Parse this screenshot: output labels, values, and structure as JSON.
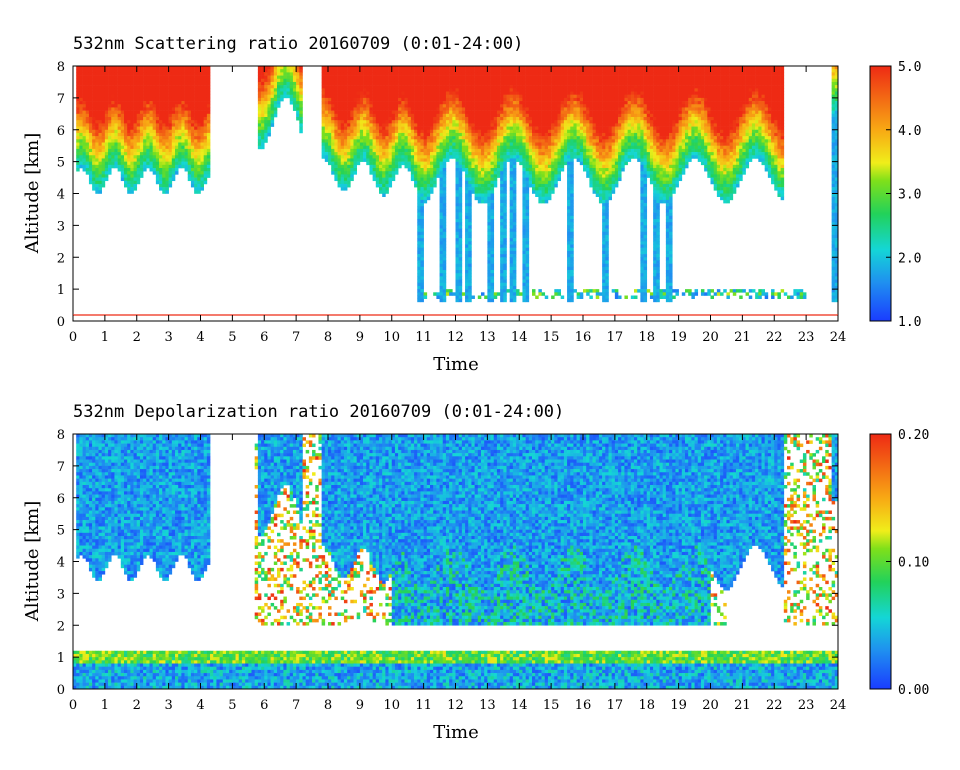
{
  "chart_data": [
    {
      "type": "heatmap",
      "title": "532nm Scattering ratio  20160709 (0:01-24:00)",
      "xlabel": "Time",
      "ylabel": "Altitude [km]",
      "xlim": [
        0,
        24
      ],
      "ylim": [
        0,
        8
      ],
      "x_ticks": [
        "0",
        "1",
        "2",
        "3",
        "4",
        "5",
        "6",
        "7",
        "8",
        "9",
        "10",
        "11",
        "12",
        "13",
        "14",
        "15",
        "16",
        "17",
        "18",
        "19",
        "20",
        "21",
        "22",
        "23",
        "24"
      ],
      "y_ticks": [
        "0",
        "1",
        "2",
        "3",
        "4",
        "5",
        "6",
        "7",
        "8"
      ],
      "colorbar": {
        "min": 1.0,
        "max": 5.0,
        "ticks": [
          "1.0",
          "2.0",
          "3.0",
          "4.0",
          "5.0"
        ]
      },
      "ground_line_km": 0.2
    },
    {
      "type": "heatmap",
      "title": "532nm Depolarization ratio  20160709 (0:01-24:00)",
      "xlabel": "Time",
      "ylabel": "Altitude [km]",
      "xlim": [
        0,
        24
      ],
      "ylim": [
        0,
        8
      ],
      "x_ticks": [
        "0",
        "1",
        "2",
        "3",
        "4",
        "5",
        "6",
        "7",
        "8",
        "9",
        "10",
        "11",
        "12",
        "13",
        "14",
        "15",
        "16",
        "17",
        "18",
        "19",
        "20",
        "21",
        "22",
        "23",
        "24"
      ],
      "y_ticks": [
        "0",
        "1",
        "2",
        "3",
        "4",
        "5",
        "6",
        "7",
        "8"
      ],
      "colorbar": {
        "min": 0.0,
        "max": 0.2,
        "ticks": [
          "0.00",
          "0.10",
          "0.20"
        ]
      }
    }
  ]
}
